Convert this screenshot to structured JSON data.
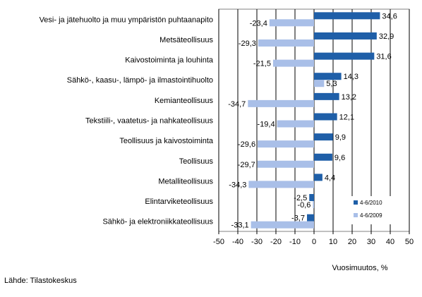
{
  "chart_data": {
    "type": "bar",
    "orientation": "horizontal",
    "categories": [
      "Vesi- ja jätehuolto ja muu ympäristön puhtaanapito",
      "Metsäteollisuus",
      "Kaivostoiminta ja louhinta",
      "Sähkö-, kaasu-, lämpö- ja ilmastointihuolto",
      "Kemianteollisuus",
      "Tekstiili-, vaatetus- ja nahkateollisuus",
      "Teollisuus ja kaivostoiminta",
      "Teollisuus",
      "Metalliteollisuus",
      "Elintarviketeollisuus",
      "Sähkö- ja elektroniikkateollisuus"
    ],
    "series": [
      {
        "name": "4-6/2010",
        "color": "#1f5fa8",
        "values": [
          34.6,
          32.9,
          31.6,
          14.3,
          13.2,
          12.1,
          9.9,
          9.6,
          4.4,
          -2.5,
          -3.7
        ],
        "labels": [
          "34,6",
          "32,9",
          "31,6",
          "14,3",
          "13,2",
          "12,1",
          "9,9",
          "9,6",
          "4,4",
          "-2,5",
          "-3,7"
        ]
      },
      {
        "name": "4-6/2009",
        "color": "#a9bfe8",
        "values": [
          -23.4,
          -29.3,
          -21.5,
          5.3,
          -34.7,
          -19.4,
          -29.6,
          -29.7,
          -34.3,
          -0.6,
          -33.1
        ],
        "labels": [
          "-23,4",
          "-29,3",
          "-21,5",
          "5,3",
          "-34,7",
          "-19,4",
          "-29,6",
          "-29,7",
          "-34,3",
          "-0,6",
          "-33,1"
        ]
      }
    ],
    "xlim": [
      -50,
      50
    ],
    "xticks": [
      "-50",
      "-40",
      "-30",
      "-20",
      "-10",
      "0",
      "10",
      "20",
      "30",
      "40",
      "50"
    ],
    "xlabel": "Vuosimuutos, %",
    "grid": "vertical major",
    "legend_placement": "bottom-right inside"
  },
  "source": "Lähde: Tilastokeskus"
}
